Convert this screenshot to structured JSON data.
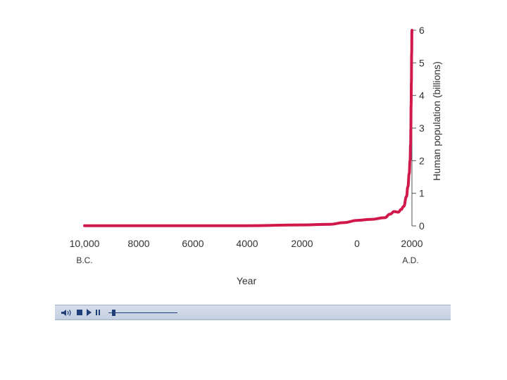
{
  "chart_data": {
    "type": "line",
    "xlabel": "Year",
    "ylabel": "Human population (billions)",
    "x_tick_labels": [
      "10,000",
      "8000",
      "6000",
      "4000",
      "2000",
      "0",
      "2000"
    ],
    "era_labels": {
      "bc": "B.C.",
      "ad": "A.D."
    },
    "y_tick_labels": [
      "0",
      "1",
      "2",
      "3",
      "4",
      "5",
      "6"
    ],
    "ylim": [
      0,
      6
    ],
    "xlim": [
      -10000,
      2000
    ],
    "series": [
      {
        "x": [
          -10000,
          -8000,
          -6000,
          -4000,
          -2000,
          -1000,
          -500,
          0,
          500,
          1000,
          1200,
          1350,
          1500,
          1600,
          1700,
          1800,
          1850,
          1900,
          1930,
          1950,
          1960,
          1970,
          1980,
          1990,
          2000
        ],
        "values": [
          0.004,
          0.005,
          0.005,
          0.006,
          0.03,
          0.05,
          0.1,
          0.17,
          0.2,
          0.25,
          0.36,
          0.44,
          0.42,
          0.5,
          0.6,
          0.9,
          1.2,
          1.6,
          2.0,
          2.5,
          3.0,
          3.7,
          4.4,
          5.3,
          6.0
        ],
        "color": "#d1184b"
      }
    ]
  },
  "player": {
    "icons": [
      "speaker-icon",
      "stop-icon",
      "play-icon",
      "pause-icon"
    ],
    "progress": 0.05,
    "accent": "#1f3f78"
  }
}
